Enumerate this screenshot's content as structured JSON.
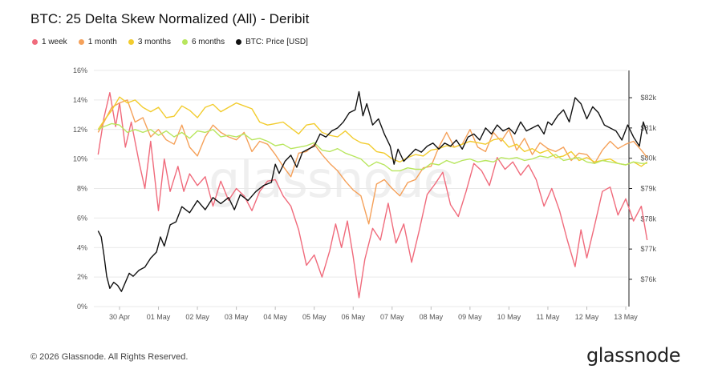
{
  "chart_data": {
    "type": "line",
    "title": "BTC: 25 Delta Skew Normalized (All) - Deribit",
    "watermark": "glassnode",
    "x_ticks": [
      "30 Apr",
      "01 May",
      "02 May",
      "03 May",
      "04 May",
      "05 May",
      "06 May",
      "07 May",
      "08 May",
      "09 May",
      "10 May",
      "11 May",
      "12 May",
      "13 May"
    ],
    "x_range": [
      0,
      13.7
    ],
    "y_left": {
      "ticks": [
        "0%",
        "2%",
        "4%",
        "6%",
        "8%",
        "10%",
        "12%",
        "14%",
        "16%"
      ],
      "range": [
        0,
        16
      ]
    },
    "y_right": {
      "ticks": [
        "$76k",
        "$77k",
        "$78k",
        "$79k",
        "$80k",
        "$81k",
        "$82k"
      ],
      "range": [
        75100,
        82900
      ]
    },
    "grid": "horizontal",
    "legend_position": "top-left",
    "series": [
      {
        "name": "1 week",
        "color": "#f06b7c",
        "axis": "left",
        "x": [
          -0.55,
          -0.4,
          -0.25,
          -0.1,
          0,
          0.15,
          0.3,
          0.5,
          0.65,
          0.8,
          1,
          1.15,
          1.3,
          1.5,
          1.65,
          1.8,
          2,
          2.2,
          2.4,
          2.6,
          2.8,
          3,
          3.2,
          3.4,
          3.6,
          3.8,
          4,
          4.2,
          4.4,
          4.6,
          4.8,
          5,
          5.2,
          5.4,
          5.55,
          5.7,
          5.85,
          6,
          6.15,
          6.3,
          6.5,
          6.7,
          6.9,
          7.1,
          7.3,
          7.5,
          7.7,
          7.9,
          8.1,
          8.3,
          8.5,
          8.7,
          8.9,
          9.1,
          9.3,
          9.5,
          9.7,
          9.9,
          10.1,
          10.3,
          10.5,
          10.7,
          10.9,
          11.1,
          11.3,
          11.5,
          11.7,
          11.85,
          12,
          12.2,
          12.4,
          12.6,
          12.8,
          13,
          13.2,
          13.4,
          13.55
        ],
        "y": [
          10.3,
          12.8,
          14.5,
          12.2,
          13.8,
          10.8,
          12.5,
          9.8,
          8,
          11.2,
          6.5,
          10,
          7.8,
          9.5,
          7.8,
          9,
          8.2,
          8.8,
          6.8,
          8.5,
          7.2,
          8,
          7.5,
          6.5,
          7.8,
          8.5,
          8.6,
          7.5,
          6.8,
          5.2,
          2.8,
          3.5,
          2,
          3.8,
          5.6,
          4,
          5.8,
          3.4,
          0.6,
          3.2,
          5.3,
          4.5,
          7,
          4.3,
          5.6,
          3,
          5.2,
          7.6,
          8.3,
          9.1,
          6.9,
          6.1,
          7.8,
          9.7,
          9.2,
          8.2,
          10.1,
          9.3,
          9.8,
          8.9,
          9.6,
          8.6,
          6.8,
          8,
          6.5,
          4.5,
          2.7,
          5.2,
          3.3,
          5.5,
          7.8,
          8.1,
          6.2,
          7.3,
          5.8,
          6.8,
          4.5
        ]
      },
      {
        "name": "1 month",
        "color": "#f5a15a",
        "axis": "left",
        "x": [
          -0.55,
          -0.4,
          -0.2,
          0,
          0.2,
          0.4,
          0.6,
          0.8,
          1,
          1.2,
          1.4,
          1.6,
          1.8,
          2,
          2.2,
          2.4,
          2.6,
          2.8,
          3,
          3.2,
          3.4,
          3.6,
          3.8,
          4,
          4.2,
          4.4,
          4.6,
          4.8,
          5,
          5.2,
          5.4,
          5.6,
          5.8,
          6,
          6.2,
          6.4,
          6.6,
          6.8,
          7,
          7.2,
          7.4,
          7.6,
          7.8,
          8,
          8.2,
          8.4,
          8.6,
          8.8,
          9,
          9.2,
          9.4,
          9.6,
          9.8,
          10,
          10.2,
          10.4,
          10.6,
          10.8,
          11,
          11.2,
          11.4,
          11.6,
          11.8,
          12,
          12.2,
          12.4,
          12.6,
          12.8,
          13,
          13.2,
          13.4,
          13.55
        ],
        "y": [
          11.8,
          12.5,
          13.5,
          13.8,
          14,
          12.5,
          12.8,
          11.5,
          12,
          11.3,
          11,
          12.3,
          10.8,
          10.2,
          11.5,
          12.3,
          11.8,
          11.5,
          11.3,
          11.8,
          10.5,
          11.2,
          11,
          10.3,
          9.5,
          8.8,
          10.4,
          10.5,
          11,
          10.3,
          9.7,
          9.2,
          8.5,
          7.9,
          7.5,
          5.6,
          8.3,
          8.6,
          8,
          7.5,
          8.4,
          8.6,
          9.4,
          9.5,
          10.8,
          11.8,
          10.8,
          11,
          12,
          10.8,
          10.5,
          11.8,
          11.2,
          12,
          10.6,
          11.4,
          10.3,
          11.1,
          10.7,
          10.5,
          10.8,
          9.9,
          10.4,
          10.3,
          9.7,
          10.6,
          11.2,
          10.7,
          11,
          11.2,
          10.6,
          10.1
        ]
      },
      {
        "name": "3 months",
        "color": "#f2cc2e",
        "axis": "left",
        "x": [
          -0.55,
          -0.4,
          -0.2,
          0,
          0.2,
          0.4,
          0.6,
          0.8,
          1,
          1.2,
          1.4,
          1.6,
          1.8,
          2,
          2.2,
          2.4,
          2.6,
          2.8,
          3,
          3.2,
          3.4,
          3.6,
          3.8,
          4,
          4.2,
          4.4,
          4.6,
          4.8,
          5,
          5.2,
          5.4,
          5.6,
          5.8,
          6,
          6.2,
          6.4,
          6.6,
          6.8,
          7,
          7.2,
          7.4,
          7.6,
          7.8,
          8,
          8.2,
          8.4,
          8.6,
          8.8,
          9,
          9.2,
          9.4,
          9.6,
          9.8,
          10,
          10.2,
          10.4,
          10.6,
          10.8,
          11,
          11.2,
          11.4,
          11.6,
          11.8,
          12,
          12.2,
          12.4,
          12.6,
          12.8,
          13,
          13.2,
          13.4,
          13.55
        ],
        "y": [
          12,
          12.6,
          13.3,
          14.2,
          13.8,
          14,
          13.5,
          13.2,
          13.5,
          12.8,
          12.9,
          13.6,
          13.3,
          12.8,
          13.5,
          13.7,
          13.2,
          13.5,
          13.8,
          13.6,
          13.4,
          12.5,
          12.3,
          12.4,
          12.5,
          12.1,
          11.7,
          12.3,
          12.4,
          11.8,
          11.6,
          11.5,
          11.9,
          11.4,
          11.1,
          11,
          10.5,
          10.4,
          10,
          9.8,
          10.1,
          10.3,
          10.2,
          10.6,
          10.7,
          10.9,
          10.8,
          11,
          11.2,
          11.1,
          11,
          11.3,
          11.4,
          10.8,
          11,
          10.5,
          10.7,
          10.4,
          10.6,
          10.1,
          10.2,
          10.5,
          9.9,
          10.1,
          9.8,
          9.9,
          10,
          9.7,
          9.6,
          9.8,
          9.5,
          9.8
        ]
      },
      {
        "name": "6 months",
        "color": "#b8e65e",
        "axis": "left",
        "x": [
          -0.55,
          -0.4,
          -0.2,
          0,
          0.2,
          0.4,
          0.6,
          0.8,
          1,
          1.2,
          1.4,
          1.6,
          1.8,
          2,
          2.2,
          2.4,
          2.6,
          2.8,
          3,
          3.2,
          3.4,
          3.6,
          3.8,
          4,
          4.2,
          4.4,
          4.6,
          4.8,
          5,
          5.2,
          5.4,
          5.6,
          5.8,
          6,
          6.2,
          6.4,
          6.6,
          6.8,
          7,
          7.2,
          7.4,
          7.6,
          7.8,
          8,
          8.2,
          8.4,
          8.6,
          8.8,
          9,
          9.2,
          9.4,
          9.6,
          9.8,
          10,
          10.2,
          10.4,
          10.6,
          10.8,
          11,
          11.2,
          11.4,
          11.6,
          11.8,
          12,
          12.2,
          12.4,
          12.6,
          12.8,
          13,
          13.2,
          13.4,
          13.55
        ],
        "y": [
          12,
          12.2,
          12.4,
          12.3,
          11.8,
          12,
          11.8,
          12,
          11.6,
          11.9,
          11.5,
          11.8,
          11.4,
          11.9,
          11.8,
          12,
          11.5,
          11.6,
          11.5,
          11.7,
          11.3,
          11.4,
          11.2,
          10.9,
          11,
          10.7,
          10.8,
          10.9,
          11.1,
          10.6,
          10.5,
          10.7,
          10.4,
          10.2,
          10,
          9.5,
          9.8,
          9.6,
          9.2,
          9.2,
          9.4,
          9.3,
          9.3,
          9.7,
          9.6,
          9.9,
          9.7,
          9.9,
          10,
          9.8,
          9.9,
          9.8,
          10.1,
          10,
          10.1,
          9.9,
          10,
          10.2,
          10.1,
          10.3,
          9.9,
          10,
          10.1,
          9.8,
          9.7,
          9.9,
          9.8,
          9.7,
          9.6,
          9.8,
          9.7,
          9.7
        ]
      },
      {
        "name": "BTC: Price [USD]",
        "color": "#111111",
        "axis": "right",
        "x": [
          -0.55,
          -0.47,
          -0.4,
          -0.33,
          -0.25,
          -0.15,
          -0.05,
          0.05,
          0.15,
          0.25,
          0.35,
          0.5,
          0.65,
          0.8,
          0.95,
          1.05,
          1.15,
          1.3,
          1.45,
          1.6,
          1.8,
          2,
          2.2,
          2.4,
          2.6,
          2.8,
          2.95,
          3.1,
          3.3,
          3.5,
          3.7,
          3.9,
          4,
          4.1,
          4.25,
          4.4,
          4.55,
          4.7,
          4.85,
          5,
          5.15,
          5.3,
          5.45,
          5.6,
          5.75,
          5.9,
          6.05,
          6.15,
          6.25,
          6.35,
          6.5,
          6.65,
          6.8,
          6.95,
          7.05,
          7.15,
          7.3,
          7.45,
          7.6,
          7.75,
          7.9,
          8.05,
          8.2,
          8.35,
          8.5,
          8.65,
          8.8,
          8.95,
          9.1,
          9.25,
          9.4,
          9.55,
          9.7,
          9.85,
          10,
          10.15,
          10.3,
          10.45,
          10.6,
          10.75,
          10.9,
          11,
          11.1,
          11.25,
          11.4,
          11.55,
          11.7,
          11.85,
          12,
          12.15,
          12.3,
          12.45,
          12.6,
          12.75,
          12.9,
          13.05,
          13.2,
          13.35,
          13.45,
          13.55
        ],
        "y": [
          77.6,
          77.4,
          76.8,
          76.1,
          75.7,
          75.9,
          75.8,
          75.6,
          75.9,
          76.2,
          76.1,
          76.3,
          76.4,
          76.7,
          76.9,
          77.4,
          77.1,
          77.8,
          77.9,
          78.4,
          78.2,
          78.6,
          78.3,
          78.7,
          78.5,
          78.7,
          78.3,
          78.8,
          78.6,
          78.9,
          79.1,
          79.2,
          79.8,
          79.5,
          79.9,
          80.1,
          79.7,
          80.2,
          80.3,
          80.4,
          80.8,
          80.7,
          80.9,
          81,
          81.2,
          81.5,
          81.6,
          82.2,
          81.4,
          81.8,
          81.1,
          81.3,
          80.8,
          80.4,
          79.8,
          80.3,
          79.9,
          80.1,
          80.3,
          80.2,
          80.4,
          80.5,
          80.3,
          80.5,
          80.4,
          80.6,
          80.3,
          80.7,
          80.8,
          80.6,
          81,
          80.8,
          81.1,
          80.9,
          81,
          80.8,
          81.2,
          80.9,
          81,
          81.1,
          80.8,
          81.2,
          81.1,
          81.4,
          81.6,
          81.2,
          82,
          81.8,
          81.3,
          81.7,
          81.5,
          81.1,
          81,
          80.9,
          80.6,
          81.1,
          80.7,
          80.4,
          81.2,
          80.8
        ]
      }
    ],
    "legend": [
      "1 week",
      "1 month",
      "3 months",
      "6 months",
      "BTC: Price [USD]"
    ]
  },
  "footer": {
    "copyright": "© 2026 Glassnode. All Rights Reserved.",
    "brand": "glassnode"
  }
}
